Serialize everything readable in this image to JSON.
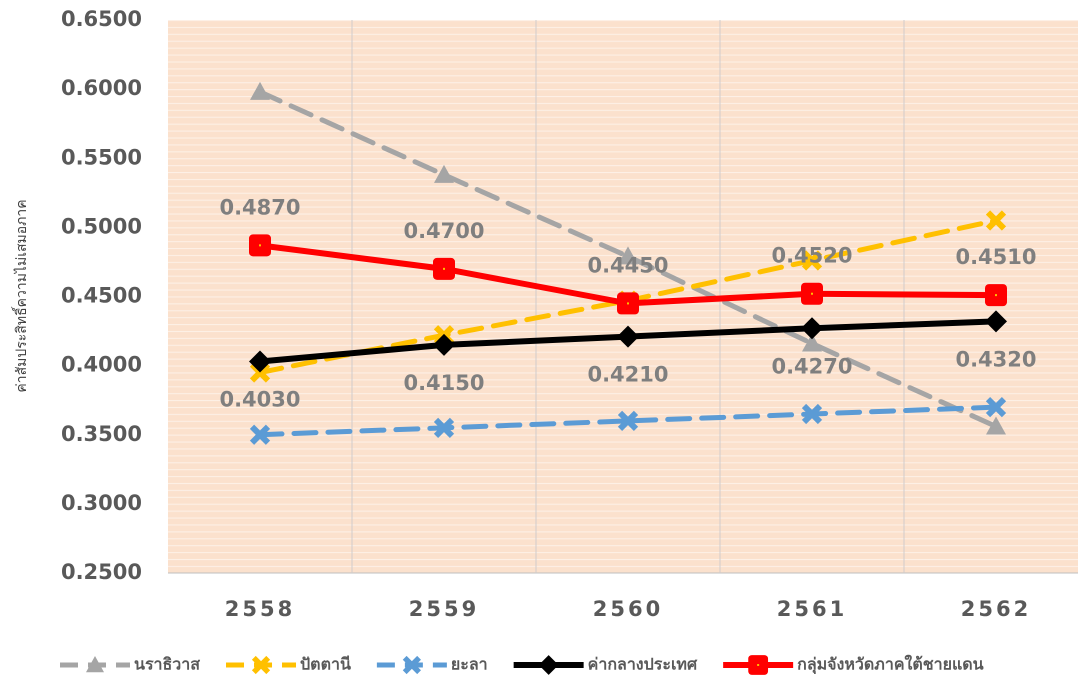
{
  "chart_data": {
    "type": "line",
    "y_label": "ค่าสัมประสิทธิ์ความไม่เสมอภาค",
    "categories": [
      "2558",
      "2559",
      "2560",
      "2561",
      "2562"
    ],
    "ylim": [
      0.25,
      0.65
    ],
    "yticks": [
      {
        "value": 0.25,
        "label": "0.2500"
      },
      {
        "value": 0.3,
        "label": "0.3000"
      },
      {
        "value": 0.35,
        "label": "0.3500"
      },
      {
        "value": 0.4,
        "label": "0.4000"
      },
      {
        "value": 0.45,
        "label": "0.4500"
      },
      {
        "value": 0.5,
        "label": "0.5000"
      },
      {
        "value": 0.55,
        "label": "0.5500"
      },
      {
        "value": 0.6,
        "label": "0.6000"
      },
      {
        "value": 0.65,
        "label": "0.6500"
      }
    ],
    "grid": true,
    "legend": "bottom",
    "series": [
      {
        "name": "นราธิวาส",
        "color": "#a5a5a5",
        "dashed": true,
        "marker": "triangle",
        "values": [
          0.598,
          0.538,
          0.479,
          0.416,
          0.356
        ]
      },
      {
        "name": "ปัตตานี",
        "color": "#ffc000",
        "dashed": true,
        "marker": "x",
        "values": [
          0.395,
          0.422,
          0.447,
          0.476,
          0.505
        ]
      },
      {
        "name": "ยะลา",
        "color": "#5b9bd5",
        "dashed": true,
        "marker": "x",
        "values": [
          0.35,
          0.355,
          0.36,
          0.365,
          0.37
        ]
      },
      {
        "name": "ค่ากลางประเทศ",
        "color": "#000000",
        "dashed": false,
        "marker": "diamond",
        "label_position": "below",
        "values": [
          0.403,
          0.415,
          0.421,
          0.427,
          0.432
        ],
        "value_labels": [
          "0.4030",
          "0.4150",
          "0.4210",
          "0.4270",
          "0.4320"
        ]
      },
      {
        "name": "กลุ่มจังหวัดภาคใต้ชายแดน",
        "color": "#ff0000",
        "dashed": false,
        "marker": "square",
        "label_position": "above",
        "values": [
          0.487,
          0.47,
          0.445,
          0.452,
          0.451
        ],
        "value_labels": [
          "0.4870",
          "0.4700",
          "0.4450",
          "0.4520",
          "0.4510"
        ]
      }
    ]
  }
}
